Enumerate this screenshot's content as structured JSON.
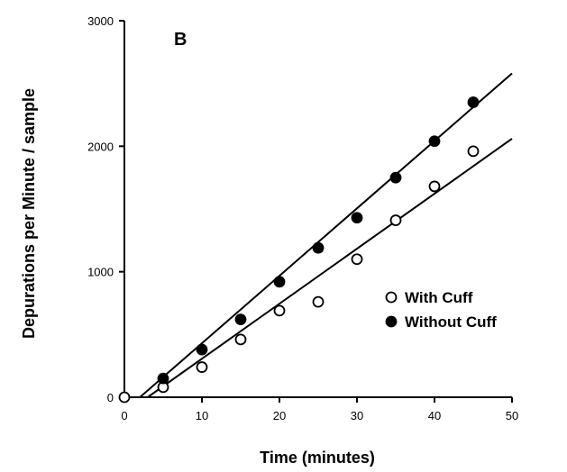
{
  "chart_data": {
    "type": "scatter",
    "panel_label": "B",
    "xlabel": "Time (minutes)",
    "ylabel": "Depurations per Minute / sample",
    "xlim": [
      0,
      50
    ],
    "ylim": [
      0,
      3000
    ],
    "xticks": [
      0,
      10,
      20,
      30,
      40,
      50
    ],
    "yticks": [
      0,
      1000,
      2000,
      3000
    ],
    "grid": false,
    "legend_position": "right",
    "series": [
      {
        "name": "With Cuff",
        "marker": "open-circle",
        "color": "#000000",
        "x": [
          0,
          5,
          10,
          15,
          20,
          25,
          30,
          35,
          40,
          45
        ],
        "y": [
          0,
          80,
          240,
          460,
          690,
          760,
          1100,
          1410,
          1680,
          1960
        ],
        "fit_line": {
          "x": [
            3,
            50
          ],
          "y": [
            0,
            2060
          ]
        }
      },
      {
        "name": "Without Cuff",
        "marker": "filled-circle",
        "color": "#000000",
        "x": [
          5,
          10,
          15,
          20,
          25,
          30,
          35,
          40,
          45
        ],
        "y": [
          150,
          380,
          620,
          920,
          1190,
          1430,
          1750,
          2040,
          2350
        ],
        "fit_line": {
          "x": [
            2,
            50
          ],
          "y": [
            0,
            2580
          ]
        }
      }
    ]
  }
}
